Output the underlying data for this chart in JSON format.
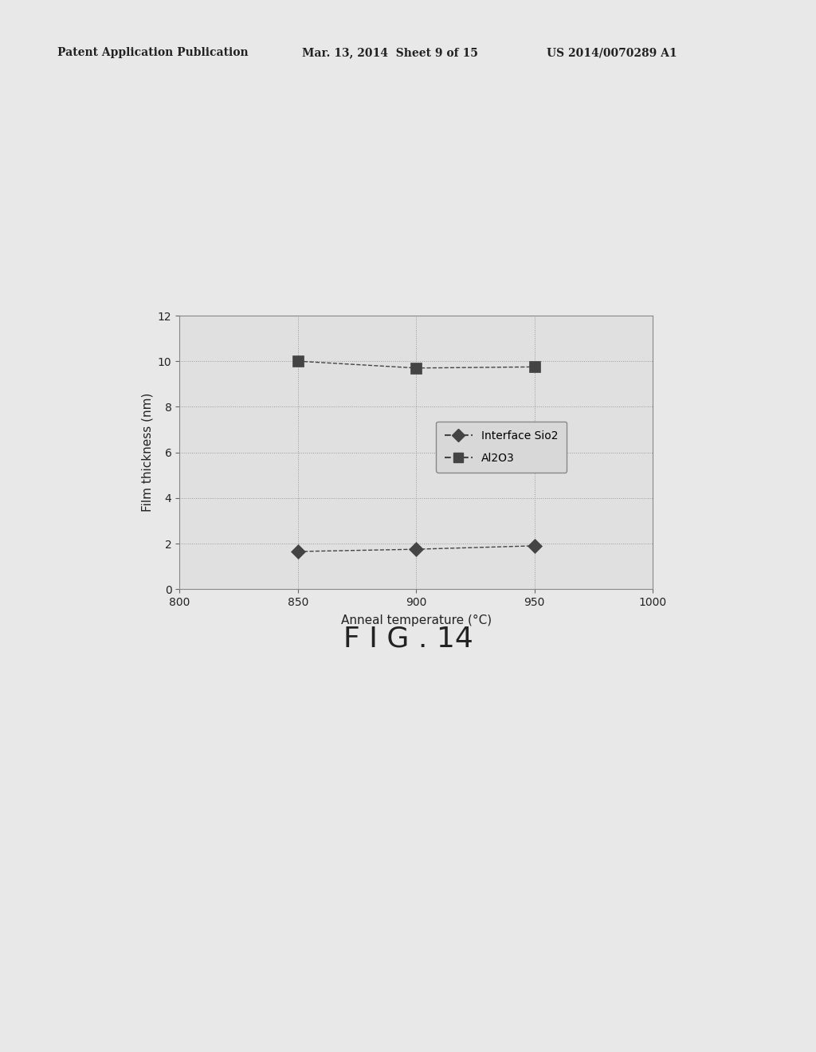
{
  "header_left": "Patent Application Publication",
  "header_mid": "Mar. 13, 2014  Sheet 9 of 15",
  "header_right": "US 2014/0070289 A1",
  "figure_label": "F I G . 14",
  "xlabel": "Anneal temperature (°C)",
  "ylabel": "Film thickness (nm)",
  "xlim": [
    800,
    1000
  ],
  "ylim": [
    0,
    12
  ],
  "xticks": [
    800,
    850,
    900,
    950,
    1000
  ],
  "yticks": [
    0,
    2,
    4,
    6,
    8,
    10,
    12
  ],
  "series": [
    {
      "label": "Interface Sio2",
      "x": [
        850,
        900,
        950
      ],
      "y": [
        1.65,
        1.75,
        1.9
      ],
      "color": "#444444",
      "marker": "D",
      "markersize": 9,
      "linestyle": "--"
    },
    {
      "label": "Al2O3",
      "x": [
        850,
        900,
        950
      ],
      "y": [
        10.0,
        9.7,
        9.75
      ],
      "color": "#444444",
      "marker": "s",
      "markersize": 10,
      "linestyle": "--"
    }
  ],
  "background_color": "#e8e8e8",
  "plot_bg_color": "#e0e0e0",
  "text_color": "#222222",
  "header_fontsize": 10,
  "axis_fontsize": 11,
  "tick_fontsize": 10,
  "legend_fontsize": 10,
  "fig_label_fontsize": 26
}
